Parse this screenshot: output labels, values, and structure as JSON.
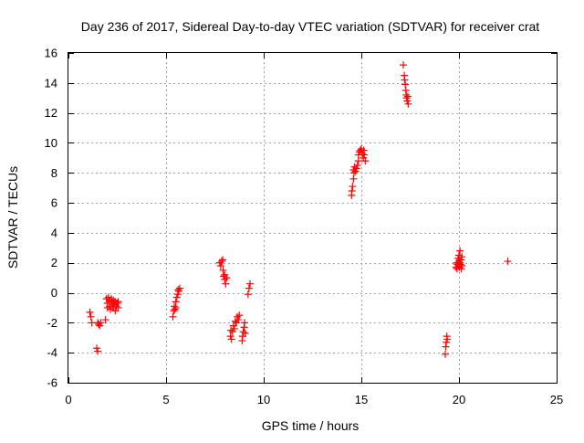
{
  "chart_data": {
    "type": "scatter",
    "title": "Day 236 of 2017, Sidereal Day-to-day VTEC variation (SDTVAR) for receiver crat",
    "xlabel": "GPS time / hours",
    "ylabel": "SDTVAR / TECUs",
    "xlim": [
      0,
      25
    ],
    "ylim": [
      -6,
      16
    ],
    "xticks": [
      0,
      5,
      10,
      15,
      20,
      25
    ],
    "yticks": [
      -6,
      -4,
      -2,
      0,
      2,
      4,
      6,
      8,
      10,
      12,
      14,
      16
    ],
    "grid": true,
    "marker": "+",
    "series": [
      {
        "name": "SDTVAR",
        "color": "#ff0000",
        "points": [
          [
            1.1,
            -1.3
          ],
          [
            1.15,
            -1.6
          ],
          [
            1.2,
            -2.0
          ],
          [
            1.45,
            -3.7
          ],
          [
            1.5,
            -3.9
          ],
          [
            1.5,
            -2.0
          ],
          [
            1.55,
            -2.1
          ],
          [
            1.6,
            -2.2
          ],
          [
            1.65,
            -2.0
          ],
          [
            1.9,
            -1.8
          ],
          [
            1.95,
            -0.4
          ],
          [
            2.0,
            -0.7
          ],
          [
            2.0,
            -1.0
          ],
          [
            2.05,
            -0.3
          ],
          [
            2.1,
            -0.5
          ],
          [
            2.1,
            -0.9
          ],
          [
            2.15,
            -1.1
          ],
          [
            2.2,
            -0.6
          ],
          [
            2.2,
            -0.4
          ],
          [
            2.25,
            -0.8
          ],
          [
            2.3,
            -1.0
          ],
          [
            2.3,
            -0.5
          ],
          [
            2.35,
            -0.7
          ],
          [
            2.4,
            -1.2
          ],
          [
            2.4,
            -0.6
          ],
          [
            2.45,
            -0.9
          ],
          [
            2.5,
            -0.7
          ],
          [
            2.55,
            -0.6
          ],
          [
            2.55,
            -1.0
          ],
          [
            5.35,
            -1.6
          ],
          [
            5.4,
            -1.2
          ],
          [
            5.42,
            -0.9
          ],
          [
            5.45,
            -1.1
          ],
          [
            5.5,
            -0.6
          ],
          [
            5.5,
            -1.0
          ],
          [
            5.55,
            -0.3
          ],
          [
            5.6,
            -0.1
          ],
          [
            5.62,
            0.2
          ],
          [
            5.65,
            0.1
          ],
          [
            5.7,
            0.3
          ],
          [
            7.75,
            2.0
          ],
          [
            7.8,
            1.8
          ],
          [
            7.85,
            2.1
          ],
          [
            7.9,
            2.2
          ],
          [
            7.92,
            1.5
          ],
          [
            7.95,
            1.1
          ],
          [
            8.0,
            1.2
          ],
          [
            8.0,
            0.9
          ],
          [
            8.05,
            0.6
          ],
          [
            8.1,
            1.0
          ],
          [
            8.3,
            -2.9
          ],
          [
            8.32,
            -2.5
          ],
          [
            8.35,
            -3.1
          ],
          [
            8.4,
            -2.6
          ],
          [
            8.45,
            -2.2
          ],
          [
            8.5,
            -2.4
          ],
          [
            8.55,
            -1.9
          ],
          [
            8.6,
            -2.0
          ],
          [
            8.65,
            -1.6
          ],
          [
            8.7,
            -1.8
          ],
          [
            8.75,
            -1.5
          ],
          [
            8.9,
            -3.2
          ],
          [
            8.92,
            -2.9
          ],
          [
            8.95,
            -2.6
          ],
          [
            9.0,
            -2.3
          ],
          [
            9.02,
            -2.0
          ],
          [
            9.05,
            -2.7
          ],
          [
            9.2,
            -0.1
          ],
          [
            9.25,
            0.3
          ],
          [
            9.3,
            0.6
          ],
          [
            14.5,
            6.5
          ],
          [
            14.52,
            6.8
          ],
          [
            14.55,
            7.1
          ],
          [
            14.6,
            7.6
          ],
          [
            14.6,
            8.2
          ],
          [
            14.62,
            8.0
          ],
          [
            14.65,
            8.4
          ],
          [
            14.7,
            8.1
          ],
          [
            14.75,
            8.3
          ],
          [
            14.8,
            8.5
          ],
          [
            14.85,
            8.8
          ],
          [
            14.85,
            9.2
          ],
          [
            14.9,
            9.4
          ],
          [
            14.95,
            9.5
          ],
          [
            15.0,
            9.6
          ],
          [
            15.05,
            9.3
          ],
          [
            15.1,
            9.0
          ],
          [
            15.12,
            9.5
          ],
          [
            15.15,
            9.2
          ],
          [
            15.2,
            8.8
          ],
          [
            17.15,
            15.2
          ],
          [
            17.2,
            14.5
          ],
          [
            17.22,
            14.2
          ],
          [
            17.25,
            13.9
          ],
          [
            17.28,
            13.5
          ],
          [
            17.3,
            13.2
          ],
          [
            17.32,
            13.0
          ],
          [
            17.35,
            12.8
          ],
          [
            17.38,
            13.1
          ],
          [
            17.4,
            12.6
          ],
          [
            19.3,
            -4.1
          ],
          [
            19.32,
            -3.6
          ],
          [
            19.35,
            -3.3
          ],
          [
            19.38,
            -2.9
          ],
          [
            19.4,
            -3.1
          ],
          [
            19.85,
            1.7
          ],
          [
            19.88,
            2.0
          ],
          [
            19.9,
            1.6
          ],
          [
            19.92,
            1.9
          ],
          [
            19.95,
            2.3
          ],
          [
            19.97,
            1.8
          ],
          [
            20.0,
            2.5
          ],
          [
            20.0,
            2.1
          ],
          [
            20.02,
            1.7
          ],
          [
            20.05,
            2.8
          ],
          [
            20.05,
            2.0
          ],
          [
            20.08,
            1.9
          ],
          [
            20.1,
            2.2
          ],
          [
            20.12,
            1.6
          ],
          [
            20.15,
            1.8
          ],
          [
            20.15,
            2.4
          ],
          [
            22.5,
            2.1
          ]
        ]
      }
    ]
  }
}
